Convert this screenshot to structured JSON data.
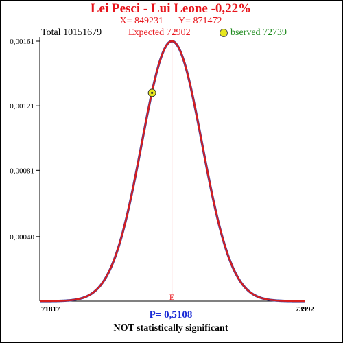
{
  "title": "Lei Pesci - Lui Leone  -0,22%",
  "x_label": "X= 849231",
  "y_label": "Y= 871472",
  "total_label": "Total  10151679",
  "expected_label": "Expected  72902",
  "observed_label": "bserved  72739",
  "p_value_label": "P= 0,5108",
  "verdict": "NOT statistically significant",
  "colors": {
    "title": "#e8141b",
    "curve": "#d81e1e",
    "observed": "#1c8a1c",
    "marker": "#e6e61e",
    "p_value": "#1a2bd6"
  },
  "chart_data": {
    "type": "line",
    "title": "",
    "xlabel": "",
    "ylabel": "",
    "xlim": [
      71817,
      73992
    ],
    "ylim": [
      0,
      0.00161
    ],
    "x_tick_labels": [
      "71817",
      "73992"
    ],
    "y_tick_values": [
      0.0004,
      0.00081,
      0.00121,
      0.00161
    ],
    "y_tick_labels": [
      "0,00040",
      "0,00081",
      "0,00121",
      "0,00161"
    ],
    "distribution": {
      "kind": "normal",
      "mean": 72902,
      "sd": 247.6,
      "peak_density": 0.00161
    },
    "expected_line": {
      "x": 72902,
      "label": "E"
    },
    "observed_point": {
      "x": 72739,
      "y": 0.00129
    },
    "grid": false,
    "legend": "none"
  }
}
